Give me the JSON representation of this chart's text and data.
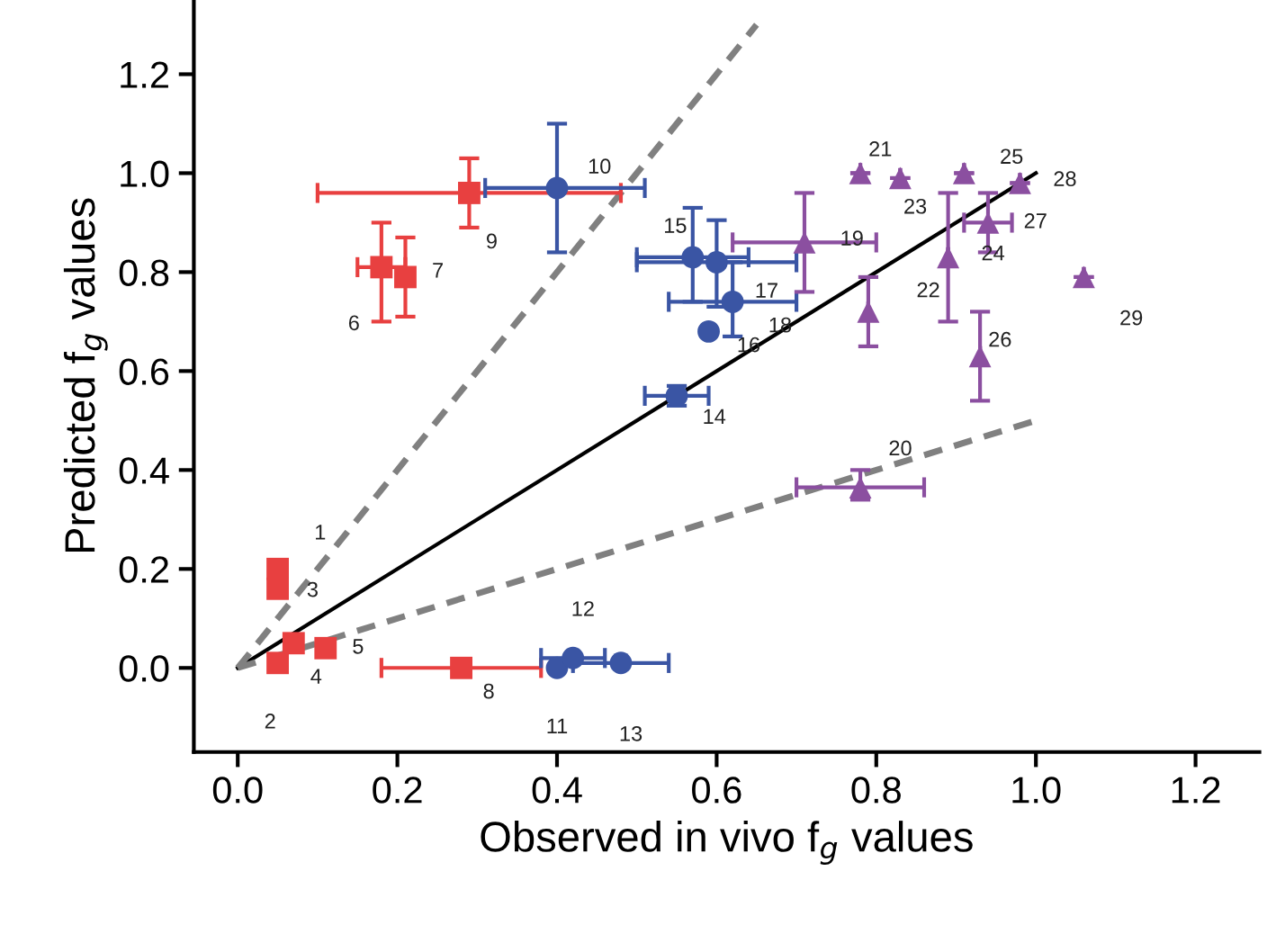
{
  "chart_data": {
    "type": "scatter",
    "xlabel": "Observed in vivo f$_{g}$ values",
    "ylabel": "Predicted f$_{g}$ values",
    "xlim": [
      -0.055,
      1.28
    ],
    "ylim": [
      -0.17,
      1.35
    ],
    "xticks": [
      {
        "value": 0,
        "label": "0.0"
      },
      {
        "value": 0.2,
        "label": "0.2"
      },
      {
        "value": 0.4,
        "label": "0.4"
      },
      {
        "value": 0.6,
        "label": "0.6"
      },
      {
        "value": 0.8,
        "label": "0.8"
      },
      {
        "value": 1,
        "label": "1.0"
      },
      {
        "value": 1.2,
        "label": "1.2"
      }
    ],
    "yticks": [
      {
        "value": 0,
        "label": "0.0"
      },
      {
        "value": 0.2,
        "label": "0.2"
      },
      {
        "value": 0.4,
        "label": "0.4"
      },
      {
        "value": 0.6,
        "label": "0.6"
      },
      {
        "value": 0.8,
        "label": "0.8"
      },
      {
        "value": 1,
        "label": "1.0"
      },
      {
        "value": 1.2,
        "label": "1.2"
      }
    ],
    "grid": false,
    "legend": false,
    "series": [
      {
        "type": "line",
        "color": "#000000",
        "line_style": "solid",
        "marker": "none",
        "x": [
          0,
          1.0
        ],
        "values": [
          0,
          1.0
        ]
      },
      {
        "type": "line",
        "color": "#808080",
        "line_style": "dashed",
        "marker": "none",
        "x": [
          0,
          0.65
        ],
        "values": [
          0,
          1.3
        ]
      },
      {
        "type": "line",
        "color": "#808080",
        "line_style": "dashed",
        "marker": "none",
        "x": [
          0,
          1.0
        ],
        "values": [
          0,
          0.5
        ]
      },
      {
        "color": "#e84040",
        "marker": "square",
        "x": [
          0.05,
          0.05,
          0.05,
          0.07,
          0.11,
          0.18,
          0.21,
          0.28,
          0.29
        ],
        "values": [
          0.2,
          0.01,
          0.16,
          0.05,
          0.04,
          0.81,
          0.79,
          0.0,
          0.96
        ],
        "errors": [
          null,
          null,
          null,
          null,
          null,
          [
            0.7,
            0.9
          ],
          [
            0.71,
            0.87
          ],
          null,
          [
            0.89,
            1.03
          ]
        ],
        "xerrors": [
          null,
          null,
          null,
          null,
          null,
          0.03,
          null,
          [
            0.18,
            0.38
          ],
          [
            0.1,
            0.48
          ]
        ]
      },
      {
        "color": "#3a55a4",
        "marker": "circle",
        "x": [
          0.4,
          0.4,
          0.42,
          0.48,
          0.55,
          0.57,
          0.59,
          0.6,
          0.62
        ],
        "values": [
          0.97,
          0.0,
          0.02,
          0.01,
          0.55,
          0.83,
          0.68,
          0.82,
          0.74
        ],
        "errors": [
          [
            0.84,
            1.1
          ],
          null,
          null,
          null,
          [
            0.53,
            0.57
          ],
          [
            0.74,
            0.93
          ],
          null,
          [
            0.73,
            0.905
          ],
          [
            0.67,
            0.82
          ]
        ],
        "xerrors": [
          [
            0.31,
            0.51
          ],
          null,
          [
            0.38,
            0.46
          ],
          [
            0.42,
            0.54
          ],
          [
            0.51,
            0.59
          ],
          [
            0.5,
            0.64
          ],
          null,
          [
            0.5,
            0.7
          ],
          [
            0.54,
            0.7
          ]
        ]
      },
      {
        "color": "#8b4fa0",
        "marker": "triangle",
        "x": [
          0.71,
          0.78,
          0.78,
          0.79,
          0.83,
          0.89,
          0.91,
          0.93,
          0.94,
          0.98,
          1.06
        ],
        "values": [
          0.86,
          0.365,
          1.0,
          0.72,
          0.99,
          0.83,
          1.0,
          0.63,
          0.9,
          0.98,
          0.79
        ],
        "errors": [
          [
            0.76,
            0.96
          ],
          [
            0.34,
            0.4
          ],
          null,
          [
            0.65,
            0.79
          ],
          null,
          [
            0.7,
            0.96
          ],
          null,
          [
            0.54,
            0.72
          ],
          [
            0.84,
            0.96
          ],
          null,
          null
        ],
        "xerrors": [
          [
            0.62,
            0.8
          ],
          [
            0.7,
            0.86
          ],
          null,
          null,
          null,
          null,
          null,
          null,
          [
            0.91,
            0.97
          ],
          null,
          null
        ]
      }
    ],
    "annotations": [
      {
        "text": "1",
        "x": 0.05,
        "y": 0.2
      },
      {
        "text": "2",
        "x": 0.05,
        "y": 0.01
      },
      {
        "text": "3",
        "x": 0.05,
        "y": 0.16
      },
      {
        "text": "4",
        "x": 0.07,
        "y": 0.05
      },
      {
        "text": "5",
        "x": 0.11,
        "y": 0.04
      },
      {
        "text": "6",
        "x": 0.18,
        "y": 0.81
      },
      {
        "text": "7",
        "x": 0.21,
        "y": 0.79
      },
      {
        "text": "8",
        "x": 0.28,
        "y": 0.0
      },
      {
        "text": "9",
        "x": 0.29,
        "y": 0.96
      },
      {
        "text": "10",
        "x": 0.4,
        "y": 0.97
      },
      {
        "text": "11",
        "x": 0.4,
        "y": 0.0
      },
      {
        "text": "12",
        "x": 0.42,
        "y": 0.02
      },
      {
        "text": "13",
        "x": 0.48,
        "y": 0.01
      },
      {
        "text": "14",
        "x": 0.55,
        "y": 0.55
      },
      {
        "text": "15",
        "x": 0.57,
        "y": 0.83
      },
      {
        "text": "16",
        "x": 0.59,
        "y": 0.68
      },
      {
        "text": "17",
        "x": 0.6,
        "y": 0.82
      },
      {
        "text": "18",
        "x": 0.62,
        "y": 0.74
      },
      {
        "text": "19",
        "x": 0.71,
        "y": 0.86
      },
      {
        "text": "20",
        "x": 0.78,
        "y": 0.365
      },
      {
        "text": "21",
        "x": 0.78,
        "y": 1.0
      },
      {
        "text": "22",
        "x": 0.79,
        "y": 0.72
      },
      {
        "text": "23",
        "x": 0.83,
        "y": 0.99
      },
      {
        "text": "24",
        "x": 0.89,
        "y": 0.83
      },
      {
        "text": "25",
        "x": 0.91,
        "y": 1.0
      },
      {
        "text": "26",
        "x": 0.93,
        "y": 0.63
      },
      {
        "text": "27",
        "x": 0.94,
        "y": 0.9
      },
      {
        "text": "28",
        "x": 0.98,
        "y": 0.98
      },
      {
        "text": "29",
        "x": 1.06,
        "y": 0.79
      }
    ]
  }
}
